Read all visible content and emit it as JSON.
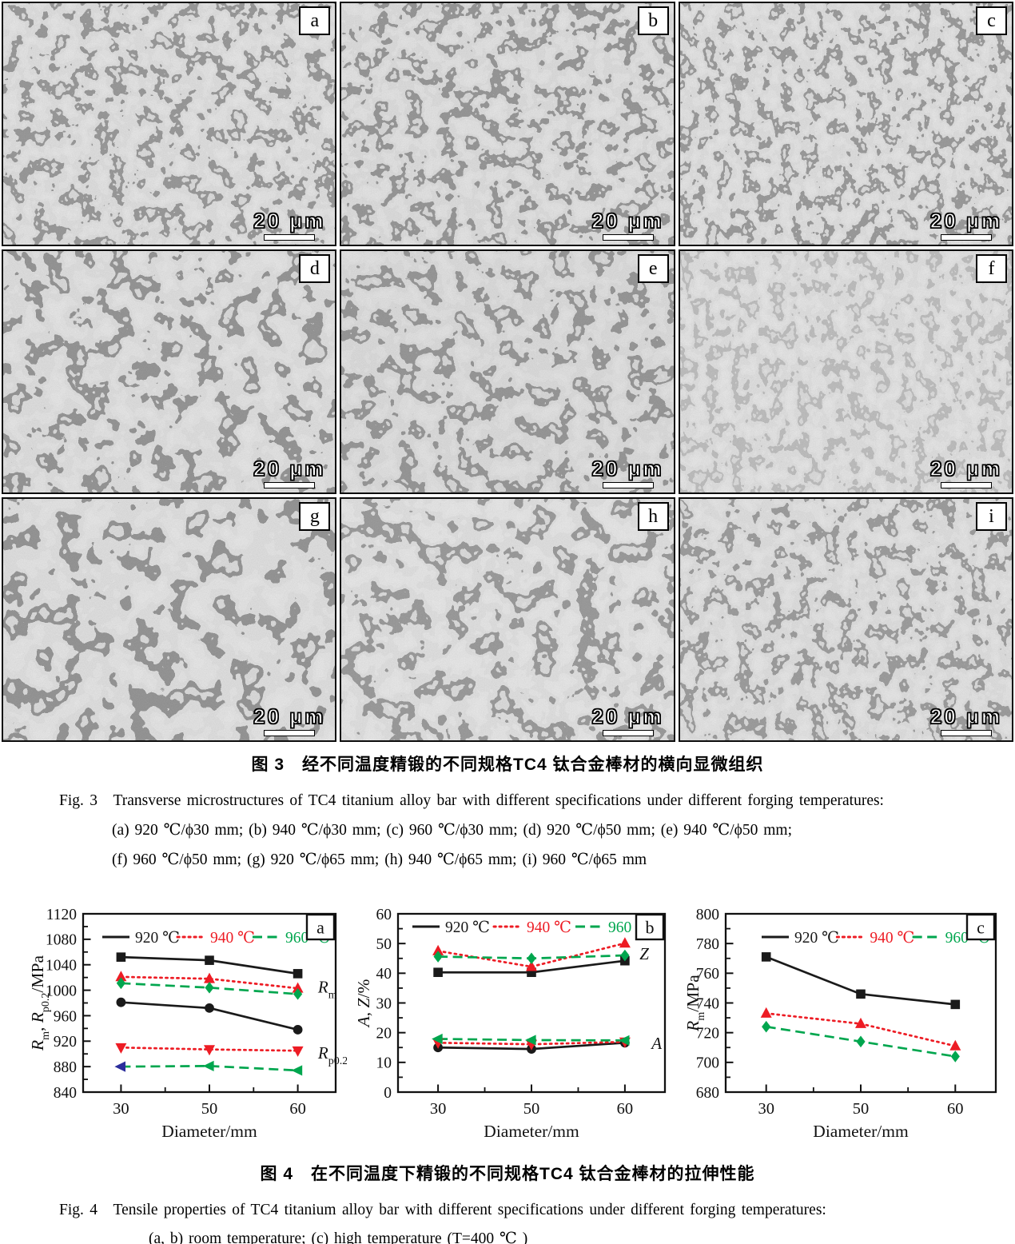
{
  "figure3": {
    "scale_bar_label": "20 μm",
    "panels": [
      {
        "label": "a"
      },
      {
        "label": "b"
      },
      {
        "label": "c"
      },
      {
        "label": "d"
      },
      {
        "label": "e"
      },
      {
        "label": "f"
      },
      {
        "label": "g"
      },
      {
        "label": "h"
      },
      {
        "label": "i"
      }
    ],
    "caption_zh": "图 3　经不同温度精锻的不同规格TC4 钛合金棒材的横向显微组织",
    "caption_en": "Fig. 3　Transverse microstructures of TC4 titanium alloy bar with different specifications under different forging temperatures:",
    "caption_specs_1": "(a) 920 ℃/ϕ30 mm; (b) 940 ℃/ϕ30 mm; (c) 960 ℃/ϕ30 mm; (d) 920 ℃/ϕ50 mm; (e) 940 ℃/ϕ50 mm;",
    "caption_specs_2": "(f) 960 ℃/ϕ50 mm; (g) 920 ℃/ϕ65 mm; (h) 940 ℃/ϕ65 mm; (i) 960 ℃/ϕ65 mm"
  },
  "figure4": {
    "caption_zh": "图 4　在不同温度下精锻的不同规格TC4 钛合金棒材的拉伸性能",
    "caption_en": "Fig. 4　Tensile properties of TC4 titanium alloy bar with different specifications under different forging temperatures:",
    "caption_line2": "(a, b) room temperature; (c) high temperature (T=400 ℃ )"
  },
  "colors": {
    "black_series": "#1a1a1a",
    "red_series": "#ed1c24",
    "green_series": "#00a64e",
    "blue_marker": "#2b2e9c",
    "frame": "#111111"
  },
  "chart_data": [
    {
      "id": "a",
      "type": "line",
      "panel_label": "a",
      "xlabel": "Diameter/mm",
      "ylabel": "Rm, Rp0.2/MPa",
      "ylabel_parts": [
        [
          "R",
          "i"
        ],
        [
          "m",
          "s"
        ],
        [
          ", ",
          ""
        ],
        [
          "R",
          "i"
        ],
        [
          "p0.2",
          "s"
        ],
        [
          "/MPa",
          ""
        ]
      ],
      "x": [
        30,
        50,
        60
      ],
      "xtick_labels": [
        "30",
        "50",
        "60"
      ],
      "ylim": [
        840,
        1120
      ],
      "ytick_step": 40,
      "ytick_minor": 20,
      "yticks": [
        840,
        880,
        920,
        960,
        1000,
        1040,
        1080,
        1120
      ],
      "grid": false,
      "legend_position": "top-inside",
      "legend": [
        {
          "label": "920 ℃",
          "color": "#1a1a1a",
          "dash": "solid"
        },
        {
          "label": "940 ℃",
          "color": "#ed1c24",
          "dash": "dotted"
        },
        {
          "label": "960 ℃",
          "color": "#00a64e",
          "dash": "dashed"
        }
      ],
      "series": [
        {
          "name": "920 ℃ Rm",
          "group": "Rm",
          "color": "#1a1a1a",
          "dash": "solid",
          "marker": "square",
          "values": [
            1052,
            1047,
            1026
          ]
        },
        {
          "name": "940 ℃ Rm",
          "group": "Rm",
          "color": "#ed1c24",
          "dash": "dotted",
          "marker": "triangle-up",
          "values": [
            1021,
            1018,
            1003
          ]
        },
        {
          "name": "960 ℃ Rm",
          "group": "Rm",
          "color": "#00a64e",
          "dash": "dashed",
          "marker": "diamond",
          "values": [
            1011,
            1004,
            994
          ]
        },
        {
          "name": "920 ℃ Rp0.2",
          "group": "Rp0.2",
          "color": "#1a1a1a",
          "dash": "solid",
          "marker": "circle",
          "values": [
            981,
            972,
            938
          ]
        },
        {
          "name": "940 ℃ Rp0.2",
          "group": "Rp0.2",
          "color": "#ed1c24",
          "dash": "dotted",
          "marker": "triangle-down",
          "values": [
            910,
            907,
            905
          ]
        },
        {
          "name": "960 ℃ Rp0.2",
          "group": "Rp0.2",
          "color": "#00a64e",
          "dash": "dashed",
          "marker": "triangle-left",
          "values": [
            880,
            881,
            874
          ],
          "marker_colors": [
            "#2b2e9c",
            null,
            null
          ]
        }
      ],
      "annotations": [
        {
          "text": "Rm",
          "parts": [
            [
              "R",
              "i"
            ],
            [
              "m",
              "s"
            ]
          ],
          "xf": 0.93,
          "y": 1004
        },
        {
          "text": "Rp0.2",
          "parts": [
            [
              "R",
              "i"
            ],
            [
              "p0.2",
              "s"
            ]
          ],
          "xf": 0.93,
          "y": 900
        }
      ]
    },
    {
      "id": "b",
      "type": "line",
      "panel_label": "b",
      "xlabel": "Diameter/mm",
      "ylabel": "A, Z/%",
      "ylabel_parts": [
        [
          "A",
          "i"
        ],
        [
          ", ",
          ""
        ],
        [
          "Z",
          "i"
        ],
        [
          "/%",
          ""
        ]
      ],
      "x": [
        30,
        50,
        60
      ],
      "xtick_labels": [
        "30",
        "50",
        "60"
      ],
      "ylim": [
        0,
        60
      ],
      "ytick_step": 10,
      "ytick_minor": 5,
      "yticks": [
        0,
        10,
        20,
        30,
        40,
        50,
        60
      ],
      "grid": false,
      "legend_position": "top-inside",
      "legend": [
        {
          "label": "920 ℃",
          "color": "#1a1a1a",
          "dash": "solid"
        },
        {
          "label": "940 ℃",
          "color": "#ed1c24",
          "dash": "dotted"
        },
        {
          "label": "960 ℃",
          "color": "#00a64e",
          "dash": "dashed"
        }
      ],
      "series": [
        {
          "name": "920 ℃ Z",
          "group": "Z",
          "color": "#1a1a1a",
          "dash": "solid",
          "marker": "square",
          "values": [
            40.3,
            40.3,
            44.2
          ]
        },
        {
          "name": "940 ℃ Z",
          "group": "Z",
          "color": "#ed1c24",
          "dash": "dotted",
          "marker": "triangle-up",
          "values": [
            47.5,
            42.2,
            50.1
          ]
        },
        {
          "name": "960 ℃ Z",
          "group": "Z",
          "color": "#00a64e",
          "dash": "dashed",
          "marker": "diamond",
          "values": [
            45.6,
            45.0,
            46.0
          ]
        },
        {
          "name": "920 ℃ A",
          "group": "A",
          "color": "#1a1a1a",
          "dash": "solid",
          "marker": "circle",
          "values": [
            15.0,
            14.5,
            16.6
          ]
        },
        {
          "name": "940 ℃ A",
          "group": "A",
          "color": "#ed1c24",
          "dash": "dotted",
          "marker": "triangle-down",
          "values": [
            16.6,
            16.1,
            16.9
          ]
        },
        {
          "name": "960 ℃ A",
          "group": "A",
          "color": "#00a64e",
          "dash": "dashed",
          "marker": "triangle-left",
          "values": [
            17.9,
            17.5,
            17.4
          ]
        }
      ],
      "annotations": [
        {
          "text": "Z",
          "parts": [
            [
              "Z",
              "i"
            ]
          ],
          "xf": 0.905,
          "y": 46.3
        },
        {
          "text": "A",
          "parts": [
            [
              "A",
              "i"
            ]
          ],
          "xf": 0.95,
          "y": 16.2
        }
      ]
    },
    {
      "id": "c",
      "type": "line",
      "panel_label": "c",
      "xlabel": "Diameter/mm",
      "ylabel": "Rm/MPa",
      "ylabel_parts": [
        [
          "R",
          "i"
        ],
        [
          "m",
          "s"
        ],
        [
          "/MPa",
          ""
        ]
      ],
      "x": [
        30,
        50,
        60
      ],
      "xtick_labels": [
        "30",
        "50",
        "60"
      ],
      "ylim": [
        680,
        800
      ],
      "ytick_step": 20,
      "ytick_minor": 10,
      "yticks": [
        680,
        700,
        720,
        740,
        760,
        780,
        800
      ],
      "grid": false,
      "legend_position": "top-inside",
      "legend": [
        {
          "label": "920 ℃",
          "color": "#1a1a1a",
          "dash": "solid"
        },
        {
          "label": "940 ℃",
          "color": "#ed1c24",
          "dash": "dotted"
        },
        {
          "label": "960 ℃",
          "color": "#00a64e",
          "dash": "dashed"
        }
      ],
      "series": [
        {
          "name": "920 ℃",
          "group": "Rm",
          "color": "#1a1a1a",
          "dash": "solid",
          "marker": "square",
          "values": [
            771,
            746,
            739
          ]
        },
        {
          "name": "940 ℃",
          "group": "Rm",
          "color": "#ed1c24",
          "dash": "dotted",
          "marker": "triangle-up",
          "values": [
            733,
            726,
            711
          ]
        },
        {
          "name": "960 ℃",
          "group": "Rm",
          "color": "#00a64e",
          "dash": "dashed",
          "marker": "diamond",
          "values": [
            724,
            714,
            704
          ]
        }
      ],
      "annotations": []
    }
  ]
}
